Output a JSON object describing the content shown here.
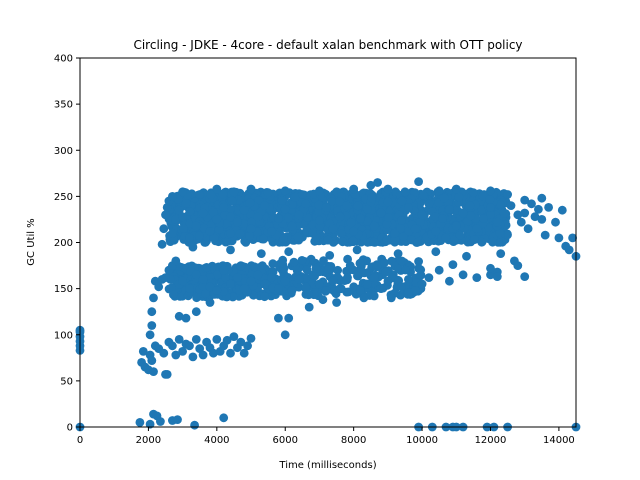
{
  "chart_data": {
    "type": "scatter",
    "title": "Circling - JDKE - 4core -  default xalan benchmark with OTT policy",
    "xlabel": "Time (milliseconds)",
    "ylabel": "GC Util %",
    "xlim": [
      0,
      14500
    ],
    "ylim": [
      0,
      400
    ],
    "xticks": [
      0,
      2000,
      4000,
      6000,
      8000,
      10000,
      12000,
      14000
    ],
    "yticks": [
      0,
      50,
      100,
      150,
      200,
      250,
      300,
      350,
      400
    ],
    "grid": false,
    "legend": "none",
    "marker_color": "#1f77b4",
    "points": [
      [
        0,
        0
      ],
      [
        0,
        83
      ],
      [
        0,
        88
      ],
      [
        0,
        93
      ],
      [
        0,
        98
      ],
      [
        0,
        103
      ],
      [
        0,
        105
      ],
      [
        1750,
        5
      ],
      [
        2050,
        3
      ],
      [
        2150,
        14
      ],
      [
        2250,
        12
      ],
      [
        2350,
        6
      ],
      [
        2700,
        7
      ],
      [
        2850,
        8
      ],
      [
        3350,
        2
      ],
      [
        4200,
        10
      ],
      [
        9900,
        0
      ],
      [
        10300,
        0
      ],
      [
        10700,
        0
      ],
      [
        10900,
        0
      ],
      [
        11000,
        0
      ],
      [
        11200,
        0
      ],
      [
        11900,
        0
      ],
      [
        12100,
        0
      ],
      [
        12500,
        0
      ],
      [
        14500,
        0
      ],
      [
        1800,
        70
      ],
      [
        1850,
        82
      ],
      [
        1900,
        65
      ],
      [
        2000,
        62
      ],
      [
        2050,
        78
      ],
      [
        2100,
        72
      ],
      [
        2150,
        60
      ],
      [
        2200,
        88
      ],
      [
        2300,
        85
      ],
      [
        2450,
        80
      ],
      [
        2500,
        57
      ],
      [
        2550,
        57
      ],
      [
        2600,
        92
      ],
      [
        2700,
        88
      ],
      [
        2800,
        78
      ],
      [
        2900,
        95
      ],
      [
        3000,
        82
      ],
      [
        3100,
        90
      ],
      [
        3200,
        88
      ],
      [
        3300,
        76
      ],
      [
        3400,
        95
      ],
      [
        3500,
        85
      ],
      [
        3600,
        78
      ],
      [
        3700,
        92
      ],
      [
        3800,
        86
      ],
      [
        3900,
        80
      ],
      [
        4000,
        95
      ],
      [
        4100,
        82
      ],
      [
        4200,
        88
      ],
      [
        4300,
        94
      ],
      [
        4400,
        80
      ],
      [
        4500,
        98
      ],
      [
        4600,
        86
      ],
      [
        4700,
        92
      ],
      [
        4800,
        80
      ],
      [
        4900,
        88
      ],
      [
        5000,
        96
      ],
      [
        2050,
        100
      ],
      [
        2100,
        110
      ],
      [
        2100,
        125
      ],
      [
        2150,
        140
      ],
      [
        2200,
        158
      ],
      [
        2300,
        152
      ],
      [
        2400,
        160
      ],
      [
        2500,
        162
      ],
      [
        2600,
        170
      ],
      [
        2700,
        175
      ],
      [
        2800,
        180
      ],
      [
        2900,
        155
      ],
      [
        3000,
        158
      ],
      [
        3200,
        150
      ],
      [
        3400,
        165
      ],
      [
        3600,
        160
      ],
      [
        3800,
        152
      ],
      [
        4000,
        148
      ],
      [
        4200,
        170
      ],
      [
        4400,
        155
      ],
      [
        4600,
        162
      ],
      [
        4800,
        150
      ],
      [
        5000,
        158
      ],
      [
        5200,
        165
      ],
      [
        5400,
        155
      ],
      [
        5600,
        162
      ],
      [
        5800,
        150
      ],
      [
        6000,
        158
      ],
      [
        6200,
        148
      ],
      [
        6400,
        160
      ],
      [
        6600,
        152
      ],
      [
        6800,
        165
      ],
      [
        7000,
        155
      ],
      [
        7200,
        148
      ],
      [
        7400,
        158
      ],
      [
        7600,
        150
      ],
      [
        7800,
        160
      ],
      [
        8000,
        152
      ],
      [
        8200,
        148
      ],
      [
        8400,
        155
      ],
      [
        8600,
        162
      ],
      [
        8800,
        150
      ],
      [
        9000,
        158
      ],
      [
        9200,
        145
      ],
      [
        9400,
        152
      ],
      [
        9600,
        160
      ],
      [
        9800,
        148
      ],
      [
        10000,
        155
      ],
      [
        10200,
        162
      ],
      [
        10500,
        170
      ],
      [
        10800,
        158
      ],
      [
        11200,
        165
      ],
      [
        11600,
        162
      ],
      [
        12000,
        165
      ],
      [
        12200,
        168
      ],
      [
        2900,
        120
      ],
      [
        3100,
        118
      ],
      [
        3400,
        125
      ],
      [
        3800,
        135
      ],
      [
        5800,
        118
      ],
      [
        6100,
        118
      ],
      [
        6000,
        100
      ],
      [
        6700,
        130
      ],
      [
        7100,
        138
      ],
      [
        7500,
        135
      ],
      [
        8300,
        140
      ],
      [
        8600,
        142
      ],
      [
        9100,
        140
      ],
      [
        9600,
        145
      ],
      [
        2400,
        198
      ],
      [
        2450,
        215
      ],
      [
        2500,
        230
      ],
      [
        2550,
        238
      ],
      [
        2600,
        245
      ],
      [
        2700,
        210
      ],
      [
        2800,
        225
      ],
      [
        2900,
        235
      ],
      [
        3000,
        228
      ],
      [
        3200,
        205
      ],
      [
        3400,
        218
      ],
      [
        3600,
        232
      ],
      [
        3800,
        212
      ],
      [
        4000,
        225
      ],
      [
        4200,
        238
      ],
      [
        4400,
        210
      ],
      [
        4600,
        222
      ],
      [
        4800,
        235
      ],
      [
        5000,
        215
      ],
      [
        5200,
        228
      ],
      [
        5400,
        240
      ],
      [
        5600,
        212
      ],
      [
        5800,
        226
      ],
      [
        6000,
        236
      ],
      [
        6200,
        218
      ],
      [
        6400,
        230
      ],
      [
        6600,
        242
      ],
      [
        6800,
        210
      ],
      [
        7000,
        224
      ],
      [
        7200,
        238
      ],
      [
        7400,
        215
      ],
      [
        7600,
        228
      ],
      [
        7800,
        240
      ],
      [
        8000,
        212
      ],
      [
        8200,
        226
      ],
      [
        8400,
        236
      ],
      [
        8600,
        218
      ],
      [
        8800,
        232
      ],
      [
        9000,
        244
      ],
      [
        9200,
        210
      ],
      [
        9400,
        224
      ],
      [
        9600,
        238
      ],
      [
        9800,
        215
      ],
      [
        10000,
        230
      ],
      [
        10200,
        242
      ],
      [
        10400,
        212
      ],
      [
        10600,
        226
      ],
      [
        10800,
        236
      ],
      [
        11000,
        218
      ],
      [
        11200,
        232
      ],
      [
        11400,
        240
      ],
      [
        11600,
        215
      ],
      [
        11800,
        226
      ],
      [
        12000,
        238
      ],
      [
        12200,
        222
      ],
      [
        12400,
        232
      ],
      [
        12600,
        240
      ],
      [
        12800,
        230
      ],
      [
        13000,
        232
      ],
      [
        13200,
        242
      ],
      [
        13400,
        236
      ],
      [
        2700,
        250
      ],
      [
        3000,
        255
      ],
      [
        3500,
        252
      ],
      [
        4000,
        258
      ],
      [
        4500,
        255
      ],
      [
        5000,
        258
      ],
      [
        5500,
        254
      ],
      [
        6000,
        256
      ],
      [
        6500,
        252
      ],
      [
        7000,
        256
      ],
      [
        7500,
        255
      ],
      [
        8000,
        258
      ],
      [
        8500,
        262
      ],
      [
        8700,
        265
      ],
      [
        9000,
        258
      ],
      [
        9500,
        255
      ],
      [
        9900,
        266
      ],
      [
        10500,
        256
      ],
      [
        11000,
        258
      ],
      [
        11500,
        254
      ],
      [
        12000,
        256
      ],
      [
        12500,
        252
      ],
      [
        13000,
        246
      ],
      [
        13500,
        248
      ],
      [
        3300,
        195
      ],
      [
        4400,
        192
      ],
      [
        5300,
        188
      ],
      [
        6100,
        190
      ],
      [
        7300,
        186
      ],
      [
        8100,
        192
      ],
      [
        9300,
        188
      ],
      [
        10400,
        190
      ],
      [
        11300,
        185
      ],
      [
        12300,
        188
      ],
      [
        4700,
        175
      ],
      [
        5900,
        178
      ],
      [
        6900,
        172
      ],
      [
        7900,
        175
      ],
      [
        8900,
        178
      ],
      [
        9900,
        172
      ],
      [
        10900,
        176
      ],
      [
        12000,
        172
      ],
      [
        12700,
        180
      ],
      [
        12800,
        175
      ],
      [
        12200,
        163
      ],
      [
        13000,
        163
      ],
      [
        12900,
        222
      ],
      [
        13100,
        215
      ],
      [
        13300,
        228
      ],
      [
        13500,
        225
      ],
      [
        13600,
        208
      ],
      [
        13700,
        238
      ],
      [
        13900,
        222
      ],
      [
        14000,
        205
      ],
      [
        14100,
        235
      ],
      [
        14200,
        196
      ],
      [
        14300,
        192
      ],
      [
        14400,
        205
      ],
      [
        14500,
        185
      ]
    ]
  }
}
